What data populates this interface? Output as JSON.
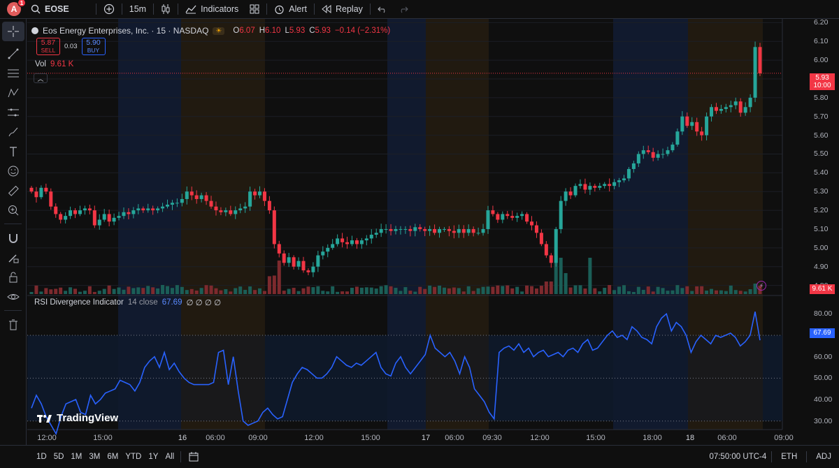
{
  "topbar": {
    "avatar_letter": "A",
    "avatar_badge": "1",
    "symbol": "EOSE",
    "interval": "15m",
    "indicators_label": "Indicators",
    "alert_label": "Alert",
    "replay_label": "Replay"
  },
  "legend": {
    "title": "Eos Energy Enterprises, Inc. · 15 · NASDAQ",
    "open_k": "O",
    "open_v": "6.07",
    "high_k": "H",
    "high_v": "6.10",
    "low_k": "L",
    "low_v": "5.93",
    "close_k": "C",
    "close_v": "5.93",
    "change": "−0.14 (−2.31%)",
    "sell_price": "5.87",
    "sell_label": "SELL",
    "spread": "0.03",
    "buy_price": "5.90",
    "buy_label": "BUY",
    "vol_label": "Vol",
    "vol_value": "9.61 K"
  },
  "rsi": {
    "label": "RSI Divergence Indicator",
    "params": "14 close",
    "value": "67.69",
    "extra": "∅ ∅ ∅ ∅"
  },
  "price_axis": [
    "6.20",
    "6.10",
    "6.00",
    "5.80",
    "5.70",
    "5.60",
    "5.50",
    "5.40",
    "5.30",
    "5.20",
    "5.10",
    "5.00",
    "4.90",
    "4.80"
  ],
  "price_tag": {
    "price": "5.93",
    "countdown": "10:00",
    "color": "#f23645"
  },
  "vol_tag": "9.61 K",
  "rsi_axis": [
    "80.00",
    "70.00",
    "60.00",
    "50.00",
    "40.00",
    "30.00"
  ],
  "rsi_tag": "67.69",
  "time_axis": [
    "12:00",
    "15:00",
    "16",
    "06:00",
    "09:00",
    "12:00",
    "15:00",
    "17",
    "06:00",
    "09:30",
    "12:00",
    "15:00",
    "18:00",
    "18",
    "06:00",
    "09:00"
  ],
  "bottombar": {
    "ranges": [
      "1D",
      "5D",
      "1M",
      "3M",
      "6M",
      "YTD",
      "1Y",
      "All"
    ],
    "clock": "07:50:00 UTC-4",
    "eth": "ETH",
    "adj": "ADJ"
  },
  "watermark": "TradingView",
  "colors": {
    "up": "#26a69a",
    "down": "#f23645",
    "rsi_line": "#2962ff"
  },
  "chart_data": {
    "type": "candlestick",
    "ylim": [
      4.75,
      6.22
    ],
    "candles_close": [
      5.3,
      5.27,
      5.32,
      5.3,
      5.22,
      5.18,
      5.15,
      5.17,
      5.2,
      5.18,
      5.2,
      5.21,
      5.2,
      5.12,
      5.15,
      5.18,
      5.14,
      5.16,
      5.17,
      5.19,
      5.18,
      5.2,
      5.21,
      5.2,
      5.21,
      5.2,
      5.21,
      5.22,
      5.23,
      5.24,
      5.24,
      5.26,
      5.3,
      5.28,
      5.26,
      5.28,
      5.25,
      5.22,
      5.2,
      5.19,
      5.2,
      5.18,
      5.2,
      5.21,
      5.22,
      5.3,
      5.28,
      5.3,
      5.25,
      5.2,
      5.02,
      4.97,
      4.92,
      4.95,
      4.9,
      4.93,
      4.88,
      4.87,
      4.9,
      4.96,
      4.98,
      5.0,
      5.02,
      5.05,
      5.03,
      5.02,
      5.04,
      5.02,
      5.04,
      5.05,
      5.07,
      5.08,
      5.1,
      5.1,
      5.09,
      5.1,
      5.1,
      5.1,
      5.09,
      5.11,
      5.1,
      5.09,
      5.1,
      5.08,
      5.1,
      5.1,
      5.09,
      5.08,
      5.1,
      5.08,
      5.1,
      5.08,
      5.08,
      5.1,
      5.2,
      5.18,
      5.15,
      5.18,
      5.17,
      5.16,
      5.17,
      5.18,
      5.14,
      5.12,
      5.08,
      5.02,
      4.96,
      4.92,
      5.1,
      5.25,
      5.3,
      5.28,
      5.33,
      5.34,
      5.31,
      5.33,
      5.32,
      5.33,
      5.34,
      5.33,
      5.35,
      5.36,
      5.37,
      5.42,
      5.45,
      5.5,
      5.52,
      5.51,
      5.48,
      5.5,
      5.5,
      5.52,
      5.55,
      5.62,
      5.7,
      5.65,
      5.67,
      5.62,
      5.6,
      5.7,
      5.75,
      5.73,
      5.74,
      5.75,
      5.76,
      5.78,
      5.72,
      5.75,
      5.8,
      6.07,
      5.93
    ],
    "rsi_values": [
      36,
      42,
      38,
      32,
      28,
      24,
      32,
      38,
      39,
      40,
      34,
      33,
      42,
      38,
      40,
      43,
      44,
      45,
      49,
      48,
      47,
      44,
      48,
      55,
      58,
      60,
      55,
      62,
      54,
      57,
      53,
      50,
      48,
      47,
      47,
      47,
      47,
      48,
      62,
      63,
      47,
      60,
      44,
      30,
      28,
      29,
      30,
      34,
      36,
      33,
      31,
      32,
      40,
      48,
      52,
      55,
      54,
      52,
      50,
      50,
      52,
      55,
      60,
      58,
      56,
      55,
      57,
      56,
      58,
      60,
      62,
      55,
      52,
      51,
      57,
      60,
      55,
      52,
      55,
      58,
      61,
      70,
      64,
      62,
      60,
      62,
      58,
      52,
      60,
      55,
      45,
      42,
      39,
      34,
      31,
      62,
      64,
      65,
      63,
      66,
      62,
      64,
      60,
      62,
      63,
      60,
      61,
      62,
      60,
      63,
      64,
      62,
      66,
      68,
      63,
      64,
      67,
      70,
      72,
      69,
      70,
      68,
      74,
      72,
      69,
      68,
      66,
      74,
      78,
      80,
      72,
      76,
      74,
      70,
      62,
      67,
      70,
      68,
      66,
      70,
      69,
      70,
      71,
      69,
      65,
      67,
      70,
      81,
      67.69
    ],
    "rsi_levels": [
      70,
      50,
      30
    ],
    "rsi_ylim": [
      26,
      84
    ]
  }
}
